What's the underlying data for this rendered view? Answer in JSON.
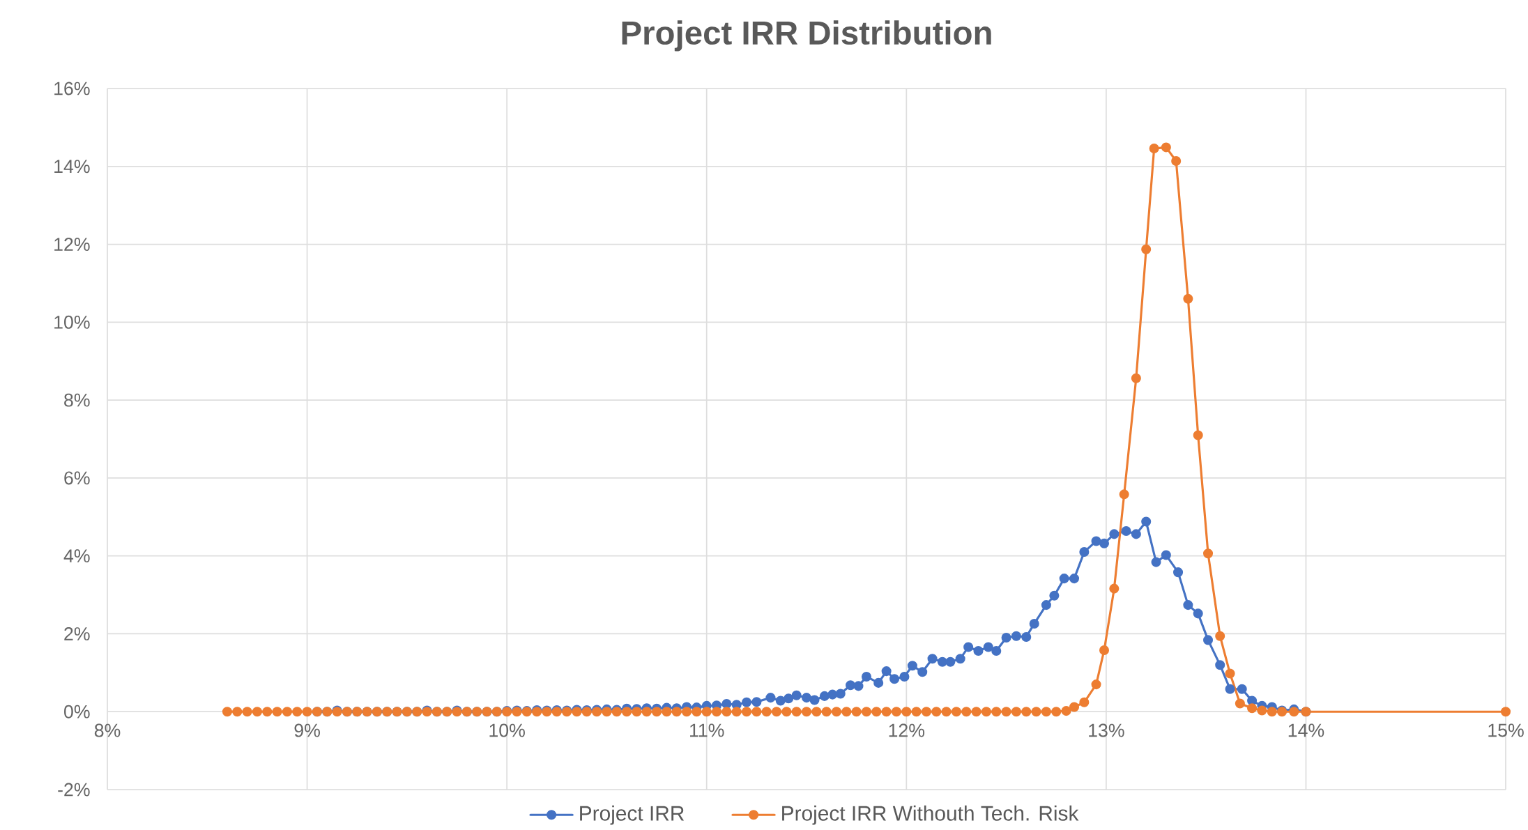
{
  "chart_data": {
    "type": "line",
    "title": "Project IRR Distribution",
    "xlim": [
      8,
      15
    ],
    "ylim": [
      -2,
      16
    ],
    "xticks": [
      {
        "value": 8,
        "label": "8%"
      },
      {
        "value": 9,
        "label": "9%"
      },
      {
        "value": 10,
        "label": "10%"
      },
      {
        "value": 11,
        "label": "11%"
      },
      {
        "value": 12,
        "label": "12%"
      },
      {
        "value": 13,
        "label": "13%"
      },
      {
        "value": 14,
        "label": "14%"
      },
      {
        "value": 15,
        "label": "15%"
      }
    ],
    "yticks": [
      {
        "value": -2,
        "label": "-2%"
      },
      {
        "value": 0,
        "label": "0%"
      },
      {
        "value": 2,
        "label": "2%"
      },
      {
        "value": 4,
        "label": "4%"
      },
      {
        "value": 6,
        "label": "6%"
      },
      {
        "value": 8,
        "label": "8%"
      },
      {
        "value": 10,
        "label": "10%"
      },
      {
        "value": 12,
        "label": "12%"
      },
      {
        "value": 14,
        "label": "14%"
      },
      {
        "value": 16,
        "label": "16%"
      }
    ],
    "grid": true,
    "legend": "bottom",
    "marker": "circle",
    "line_style": "solid",
    "series": [
      {
        "name": "Project IRR",
        "color": "#4472c4",
        "x": [
          9.05,
          9.1,
          9.15,
          9.2,
          9.25,
          9.3,
          9.35,
          9.4,
          9.45,
          9.5,
          9.55,
          9.6,
          9.65,
          9.7,
          9.75,
          9.8,
          9.85,
          9.9,
          9.95,
          10,
          10.05,
          10.1,
          10.15,
          10.2,
          10.25,
          10.3,
          10.35,
          10.4,
          10.45,
          10.5,
          10.55,
          10.6,
          10.65,
          10.7,
          10.75,
          10.8,
          10.85,
          10.9,
          10.95,
          11,
          11.05,
          11.1,
          11.15,
          11.2,
          11.25,
          11.32,
          11.37,
          11.41,
          11.45,
          11.5,
          11.54,
          11.59,
          11.63,
          11.67,
          11.72,
          11.76,
          11.8,
          11.86,
          11.9,
          11.94,
          11.99,
          12.03,
          12.08,
          12.13,
          12.18,
          12.22,
          12.27,
          12.31,
          12.36,
          12.41,
          12.45,
          12.5,
          12.55,
          12.6,
          12.64,
          12.7,
          12.74,
          12.79,
          12.84,
          12.89,
          12.95,
          12.99,
          13.04,
          13.1,
          13.15,
          13.2,
          13.25,
          13.3,
          13.36,
          13.41,
          13.46,
          13.51,
          13.57,
          13.62,
          13.68,
          13.73,
          13.78,
          13.83,
          13.88,
          13.94,
          14
        ],
        "values": [
          0,
          0,
          0.03,
          0,
          0,
          0,
          0,
          0,
          0,
          0,
          0,
          0.03,
          0,
          0,
          0.03,
          0,
          0,
          0,
          0,
          0.02,
          0.03,
          0.02,
          0.04,
          0.03,
          0.04,
          0.03,
          0.05,
          0.04,
          0.05,
          0.06,
          0.05,
          0.08,
          0.07,
          0.09,
          0.08,
          0.1,
          0.09,
          0.12,
          0.11,
          0.15,
          0.16,
          0.2,
          0.18,
          0.24,
          0.25,
          0.36,
          0.28,
          0.34,
          0.42,
          0.36,
          0.3,
          0.4,
          0.44,
          0.46,
          0.68,
          0.66,
          0.9,
          0.74,
          1.04,
          0.84,
          0.9,
          1.18,
          1.02,
          1.36,
          1.28,
          1.28,
          1.36,
          1.66,
          1.56,
          1.66,
          1.56,
          1.9,
          1.94,
          1.92,
          2.26,
          2.74,
          2.98,
          3.42,
          3.42,
          4.1,
          4.38,
          4.32,
          4.56,
          4.64,
          4.56,
          4.88,
          3.84,
          4.02,
          3.58,
          2.74,
          2.52,
          1.84,
          1.2,
          0.58,
          0.58,
          0.28,
          0.15,
          0.12,
          0.03,
          0.06,
          0
        ]
      },
      {
        "name": "Project IRR Withouth Tech. Risk",
        "color": "#ed7d31",
        "x": [
          8.6,
          8.65,
          8.7,
          8.75,
          8.8,
          8.85,
          8.9,
          8.95,
          9,
          9.05,
          9.1,
          9.15,
          9.2,
          9.25,
          9.3,
          9.35,
          9.4,
          9.45,
          9.5,
          9.55,
          9.6,
          9.65,
          9.7,
          9.75,
          9.8,
          9.85,
          9.9,
          9.95,
          10,
          10.05,
          10.1,
          10.15,
          10.2,
          10.25,
          10.3,
          10.35,
          10.4,
          10.45,
          10.5,
          10.55,
          10.6,
          10.65,
          10.7,
          10.75,
          10.8,
          10.85,
          10.9,
          10.95,
          11,
          11.05,
          11.1,
          11.15,
          11.2,
          11.25,
          11.3,
          11.35,
          11.4,
          11.45,
          11.5,
          11.55,
          11.6,
          11.65,
          11.7,
          11.75,
          11.8,
          11.85,
          11.9,
          11.95,
          12,
          12.05,
          12.1,
          12.15,
          12.2,
          12.25,
          12.3,
          12.35,
          12.4,
          12.45,
          12.5,
          12.55,
          12.6,
          12.65,
          12.7,
          12.75,
          12.8,
          12.84,
          12.89,
          12.95,
          12.99,
          13.04,
          13.09,
          13.15,
          13.2,
          13.24,
          13.3,
          13.35,
          13.41,
          13.46,
          13.51,
          13.57,
          13.62,
          13.67,
          13.73,
          13.78,
          13.83,
          13.88,
          13.94,
          14,
          15
        ],
        "values": [
          0,
          0,
          0,
          0,
          0,
          0,
          0,
          0,
          0,
          0,
          0,
          0,
          0,
          0,
          0,
          0,
          0,
          0,
          0,
          0,
          0,
          0,
          0,
          0,
          0,
          0,
          0,
          0,
          0,
          0,
          0,
          0,
          0,
          0,
          0,
          0,
          0,
          0,
          0,
          0,
          0,
          0,
          0,
          0,
          0,
          0,
          0,
          0,
          0,
          0,
          0,
          0,
          0,
          0,
          0,
          0,
          0,
          0,
          0,
          0,
          0,
          0,
          0,
          0,
          0,
          0,
          0,
          0,
          0,
          0,
          0,
          0,
          0,
          0,
          0,
          0,
          0,
          0,
          0,
          0,
          0,
          0,
          0,
          0,
          0.02,
          0.12,
          0.24,
          0.7,
          1.58,
          3.16,
          5.58,
          8.56,
          11.87,
          14.46,
          14.49,
          14.14,
          10.6,
          7.1,
          4.06,
          1.94,
          0.98,
          0.21,
          0.09,
          0.03,
          0,
          0,
          0,
          0,
          0
        ]
      }
    ]
  }
}
